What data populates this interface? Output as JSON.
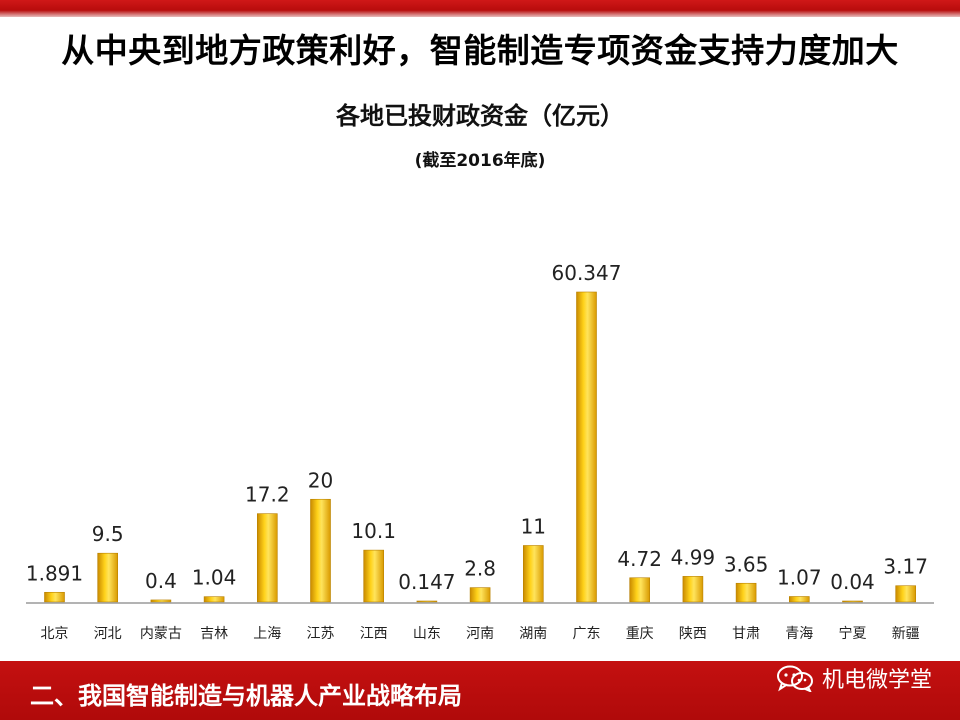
{
  "headline": "从中央到地方政策利好，智能制造专项资金支持力度加大",
  "footer": {
    "section_title": "二、我国智能制造与机器人产业战略布局",
    "brand": "机电微学堂"
  },
  "chart_data": {
    "type": "bar",
    "title": "各地已投财政资金（亿元）",
    "subtitle": "(截至2016年底)",
    "categories": [
      "北京",
      "河北",
      "内蒙古",
      "吉林",
      "上海",
      "江苏",
      "江西",
      "山东",
      "河南",
      "湖南",
      "广东",
      "重庆",
      "陕西",
      "甘肃",
      "青海",
      "宁夏",
      "新疆"
    ],
    "values": [
      1.891,
      9.5,
      0.4,
      1.04,
      17.2,
      20,
      10.1,
      0.147,
      2.8,
      11,
      60.347,
      4.72,
      4.99,
      3.65,
      1.07,
      0.04,
      3.17
    ],
    "labels": [
      "1.891",
      "9.5",
      "0.4",
      "1.04",
      "17.2",
      "20",
      "10.1",
      "0.147",
      "2.8",
      "11",
      "60.347",
      "4.72",
      "4.99",
      "3.65",
      "1.07",
      "0.04",
      "3.17"
    ],
    "bar_color": "#f2b400",
    "grid": false,
    "legend": false
  }
}
